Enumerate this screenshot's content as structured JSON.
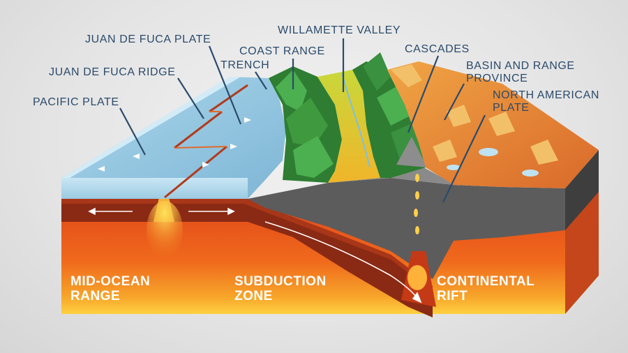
{
  "labels": {
    "juan_de_fuca_plate": "JUAN DE FUCA PLATE",
    "willamette_valley": "WILLAMETTE VALLEY",
    "coast_range": "COAST RANGE",
    "cascades": "CASCADES",
    "trench": "TRENCH",
    "juan_de_fuca_ridge": "JUAN DE FUCA RIDGE",
    "basin_and_range_1": "BASIN AND RANGE",
    "basin_and_range_2": "PROVINCE",
    "pacific_plate": "PACIFIC PLATE",
    "north_american_1": "NORTH AMERICAN",
    "north_american_2": "PLATE"
  },
  "zones": {
    "mid_ocean_1": "MID-OCEAN",
    "mid_ocean_2": "RANGE",
    "subduction_1": "SUBDUCTION",
    "subduction_2": "ZONE",
    "continental_1": "CONTINENTAL",
    "continental_2": "RIFT"
  },
  "colors": {
    "label_text": "#2b4a6b",
    "ocean": "#8fc3de",
    "mantle": "#e85a1a",
    "magma": "#ffc42a",
    "plate_crust": "#8a2a14",
    "forest": "#2f8a32",
    "valley": "#d8d33a",
    "basin": "#e9822e",
    "continental_crust": "#5a5a5a"
  }
}
